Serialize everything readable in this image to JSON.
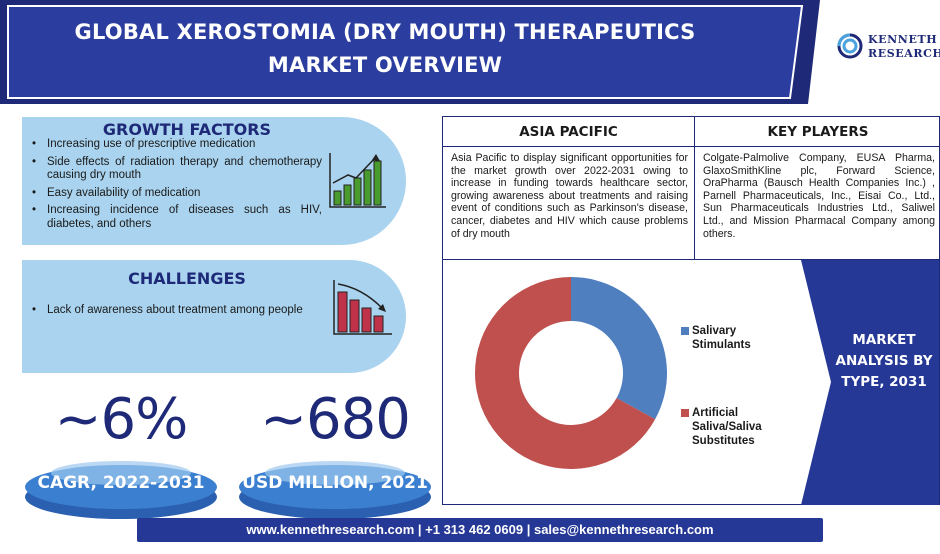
{
  "header": {
    "title_line1": "GLOBAL XEROSTOMIA (DRY MOUTH) THERAPEUTICS",
    "title_line2": "MARKET OVERVIEW",
    "logo_line1": "KENNETH",
    "logo_line2": "RESEARCH"
  },
  "growth_factors": {
    "title": "GROWTH FACTORS",
    "items": [
      "Increasing use of prescriptive medication",
      "Side effects of radiation therapy and chemotherapy causing dry mouth",
      "Easy availability of medication",
      "Increasing incidence of diseases such as HIV, diabetes, and others"
    ]
  },
  "challenges": {
    "title": "CHALLENGES",
    "items": [
      "Lack of awareness about treatment among people"
    ]
  },
  "stats": [
    {
      "value": "~6%",
      "label": "CAGR, 2022-2031"
    },
    {
      "value": "~680",
      "label": "USD MILLION, 2021"
    }
  ],
  "asia_pacific": {
    "title": "ASIA PACIFIC",
    "text": "Asia Pacific to display significant opportunities for the market growth over 2022-2031 owing to increase in funding towards healthcare sector, growing awareness about treatments and raising event of conditions such as Parkinson's disease, cancer, diabetes and HIV which cause problems of dry mouth"
  },
  "key_players": {
    "title": "KEY PLAYERS",
    "text": "Colgate-Palmolive Company, EUSA Pharma, GlaxoSmithKline plc, Forward Science, OraPharma (Bausch Health Companies Inc.) , Parnell Pharmaceuticals, Inc., Eisai Co., Ltd., Sun Pharmaceuticals Industries Ltd., Saliwel Ltd., and Mission Pharmacal Company among others."
  },
  "market_analysis": {
    "label": "MARKET ANALYSIS BY TYPE, 2031"
  },
  "chart_data": {
    "type": "pie",
    "donut": true,
    "series": [
      {
        "name": "Salivary Stimulants",
        "value": 33,
        "color": "#4f7fbf"
      },
      {
        "name": "Artificial Saliva/Saliva Substitutes",
        "value": 67,
        "color": "#c0504d"
      }
    ],
    "legend_position": "right"
  },
  "footer": {
    "text": "www.kennethresearch.com | +1 313 462 0609 | sales@kennethresearch.com"
  },
  "colors": {
    "navy": "#1e2a78",
    "header_blue": "#263896",
    "light_blue": "#a9d3ee",
    "green": "#4a9b2e",
    "red": "#c0324a"
  }
}
